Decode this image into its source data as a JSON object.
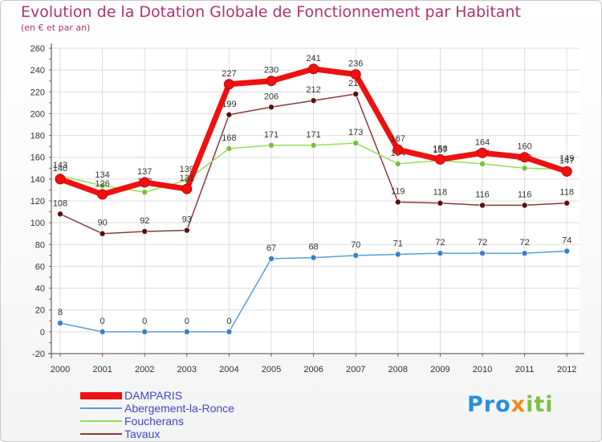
{
  "chart_data": {
    "type": "line",
    "title": "Evolution de la Dotation Globale de Fonctionnement par Habitant",
    "subtitle": "(en € et par an)",
    "xlabel": "",
    "ylabel": "",
    "ylim": [
      -20,
      260
    ],
    "y_ticks": [
      -20,
      0,
      20,
      40,
      60,
      80,
      100,
      120,
      140,
      160,
      180,
      200,
      220,
      240,
      260
    ],
    "categories": [
      "2000",
      "2001",
      "2002",
      "2003",
      "2004",
      "2005",
      "2006",
      "2007",
      "2008",
      "2009",
      "2010",
      "2011",
      "2012"
    ],
    "grid": true,
    "legend_position": "bottom-left",
    "series": [
      {
        "name": "Tavaux",
        "color": "#7a2a2a",
        "values": [
          108,
          90,
          92,
          93,
          199,
          206,
          212,
          218,
          119,
          118,
          116,
          116,
          118
        ]
      },
      {
        "name": "Foucherans",
        "color": "#99dd55",
        "values": [
          143,
          134,
          128,
          139,
          168,
          171,
          171,
          173,
          154,
          157,
          154,
          150,
          149
        ]
      },
      {
        "name": "Abergement-la-Ronce",
        "color": "#5b9bd5",
        "values": [
          8,
          0,
          0,
          0,
          0,
          67,
          68,
          70,
          71,
          72,
          72,
          72,
          74
        ]
      },
      {
        "name": "DAMPARIS",
        "color": "#ee1111",
        "values": [
          140,
          126,
          137,
          131,
          227,
          230,
          241,
          236,
          167,
          158,
          164,
          160,
          147
        ]
      }
    ],
    "legend_order": [
      "DAMPARIS",
      "Abergement-la-Ronce",
      "Foucherans",
      "Tavaux"
    ]
  },
  "logo": {
    "part1": "Pro",
    "part2": "x",
    "part3": "iti"
  }
}
